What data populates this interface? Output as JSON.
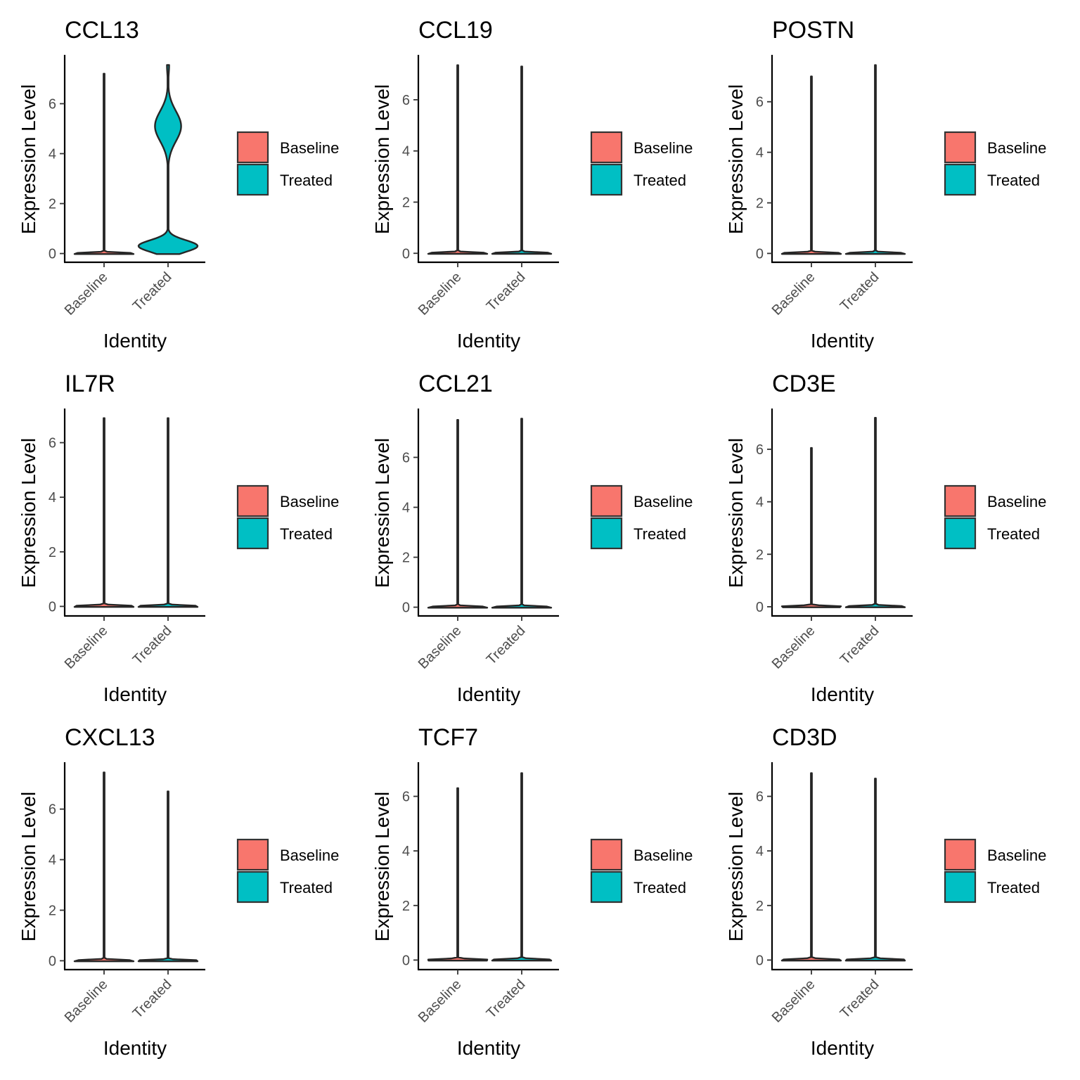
{
  "legend": {
    "entries": [
      {
        "label": "Baseline",
        "color": "#F8766D"
      },
      {
        "label": "Treated",
        "color": "#00BFC4"
      }
    ]
  },
  "chart_data": [
    {
      "type": "violin",
      "title": "CCL13",
      "xlabel": "Identity",
      "ylabel": "Expression Level",
      "categories": [
        "Baseline",
        "Treated"
      ],
      "yticks": [
        0,
        2,
        4,
        6
      ],
      "ylim": [
        -0.35,
        7.9
      ],
      "series": [
        {
          "name": "Baseline",
          "max": 7.2,
          "shape": "spike"
        },
        {
          "name": "Treated",
          "max": 7.55,
          "shape": "bimodal",
          "modes": [
            0.3,
            5.1
          ]
        }
      ]
    },
    {
      "type": "violin",
      "title": "CCL19",
      "xlabel": "Identity",
      "ylabel": "Expression Level",
      "categories": [
        "Baseline",
        "Treated"
      ],
      "yticks": [
        0,
        2,
        4,
        6
      ],
      "ylim": [
        -0.35,
        7.7
      ],
      "series": [
        {
          "name": "Baseline",
          "max": 7.35,
          "shape": "spike"
        },
        {
          "name": "Treated",
          "max": 7.3,
          "shape": "spike"
        }
      ]
    },
    {
      "type": "violin",
      "title": "POSTN",
      "xlabel": "Identity",
      "ylabel": "Expression Level",
      "categories": [
        "Baseline",
        "Treated"
      ],
      "yticks": [
        0,
        2,
        4,
        6
      ],
      "ylim": [
        -0.35,
        7.8
      ],
      "series": [
        {
          "name": "Baseline",
          "max": 7.0,
          "shape": "spike"
        },
        {
          "name": "Treated",
          "max": 7.45,
          "shape": "spike"
        }
      ]
    },
    {
      "type": "violin",
      "title": "IL7R",
      "xlabel": "Identity",
      "ylabel": "Expression Level",
      "categories": [
        "Baseline",
        "Treated"
      ],
      "yticks": [
        0,
        2,
        4,
        6
      ],
      "ylim": [
        -0.35,
        7.2
      ],
      "series": [
        {
          "name": "Baseline",
          "max": 6.9,
          "shape": "spike"
        },
        {
          "name": "Treated",
          "max": 6.9,
          "shape": "spike"
        }
      ]
    },
    {
      "type": "violin",
      "title": "CCL21",
      "xlabel": "Identity",
      "ylabel": "Expression Level",
      "categories": [
        "Baseline",
        "Treated"
      ],
      "yticks": [
        0,
        2,
        4,
        6
      ],
      "ylim": [
        -0.35,
        7.9
      ],
      "series": [
        {
          "name": "Baseline",
          "max": 7.5,
          "shape": "spike"
        },
        {
          "name": "Treated",
          "max": 7.55,
          "shape": "spike"
        }
      ]
    },
    {
      "type": "violin",
      "title": "CD3E",
      "xlabel": "Identity",
      "ylabel": "Expression Level",
      "categories": [
        "Baseline",
        "Treated"
      ],
      "yticks": [
        0,
        2,
        4,
        6
      ],
      "ylim": [
        -0.35,
        7.5
      ],
      "series": [
        {
          "name": "Baseline",
          "max": 6.05,
          "shape": "spike"
        },
        {
          "name": "Treated",
          "max": 7.2,
          "shape": "spike"
        }
      ]
    },
    {
      "type": "violin",
      "title": "CXCL13",
      "xlabel": "Identity",
      "ylabel": "Expression Level",
      "categories": [
        "Baseline",
        "Treated"
      ],
      "yticks": [
        0,
        2,
        4,
        6
      ],
      "ylim": [
        -0.35,
        7.8
      ],
      "series": [
        {
          "name": "Baseline",
          "max": 7.45,
          "shape": "spike"
        },
        {
          "name": "Treated",
          "max": 6.7,
          "shape": "spike"
        }
      ]
    },
    {
      "type": "violin",
      "title": "TCF7",
      "xlabel": "Identity",
      "ylabel": "Expression Level",
      "categories": [
        "Baseline",
        "Treated"
      ],
      "yticks": [
        0,
        2,
        4,
        6
      ],
      "ylim": [
        -0.35,
        7.2
      ],
      "series": [
        {
          "name": "Baseline",
          "max": 6.3,
          "shape": "spike"
        },
        {
          "name": "Treated",
          "max": 6.85,
          "shape": "spike"
        }
      ]
    },
    {
      "type": "violin",
      "title": "CD3D",
      "xlabel": "Identity",
      "ylabel": "Expression Level",
      "categories": [
        "Baseline",
        "Treated"
      ],
      "yticks": [
        0,
        2,
        4,
        6
      ],
      "ylim": [
        -0.35,
        7.2
      ],
      "series": [
        {
          "name": "Baseline",
          "max": 6.85,
          "shape": "spike"
        },
        {
          "name": "Treated",
          "max": 6.65,
          "shape": "spike"
        }
      ]
    }
  ]
}
